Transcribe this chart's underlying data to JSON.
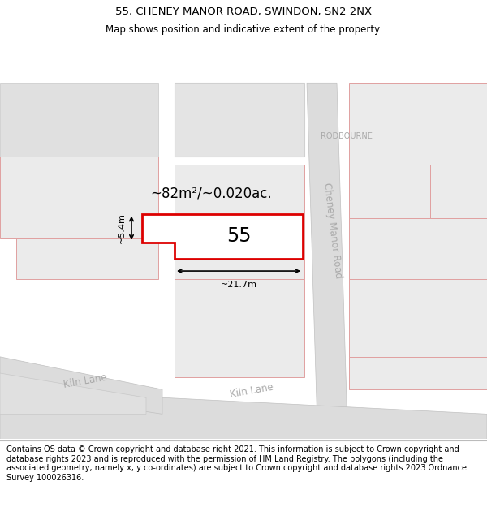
{
  "title_line1": "55, CHENEY MANOR ROAD, SWINDON, SN2 2NX",
  "title_line2": "Map shows position and indicative extent of the property.",
  "footer_text": "Contains OS data © Crown copyright and database right 2021. This information is subject to Crown copyright and database rights 2023 and is reproduced with the permission of HM Land Registry. The polygons (including the associated geometry, namely x, y co-ordinates) are subject to Crown copyright and database rights 2023 Ordnance Survey 100026316.",
  "area_label": "~82m²/~0.020ac.",
  "property_number": "55",
  "width_label": "~21.7m",
  "height_label": "~5.4m",
  "map_bg": "#f2f2f2",
  "property_fill": "#ffffff",
  "property_edge": "#dd0000",
  "title_fontsize": 9.5,
  "subtitle_fontsize": 8.5,
  "footer_fontsize": 7.0,
  "building_fill": "#e8e8e8",
  "building_edge": "#e0a0a0",
  "road_fill": "#e8e8e8",
  "road_edge": "#c8c8c8",
  "road_label_color": "#aaaaaa",
  "rodbourne_color": "#aaaaaa"
}
